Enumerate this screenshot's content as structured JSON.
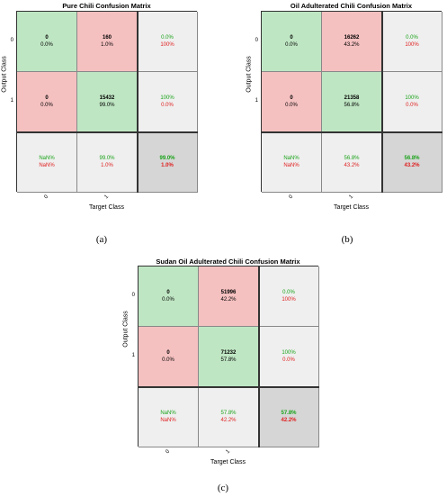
{
  "chart_data": [
    {
      "type": "heatmap",
      "title": "Pure Chili Confusion Matrix",
      "xlabel": "Target Class",
      "ylabel": "Output Class",
      "x_tick_labels": [
        "0",
        "1"
      ],
      "y_tick_labels": [
        "0",
        "1"
      ],
      "caption": "(a)",
      "cells": [
        [
          {
            "count": "0",
            "pct": "0.0%"
          },
          {
            "count": "160",
            "pct": "1.0%"
          }
        ],
        [
          {
            "count": "0",
            "pct": "0.0%"
          },
          {
            "count": "15432",
            "pct": "99.0%"
          }
        ]
      ],
      "row_summary": [
        [
          "0.0%",
          "100%"
        ],
        [
          "100%",
          "0.0%"
        ]
      ],
      "col_summary": [
        [
          "NaN%",
          "NaN%"
        ],
        [
          "99.0%",
          "1.0%"
        ]
      ],
      "overall": [
        "99.0%",
        "1.0%"
      ]
    },
    {
      "type": "heatmap",
      "title": "Oil Adulterated Chili Confusion Matrix",
      "xlabel": "Target Class",
      "ylabel": "Output Class",
      "x_tick_labels": [
        "0",
        "1"
      ],
      "y_tick_labels": [
        "0",
        "1"
      ],
      "caption": "(b)",
      "cells": [
        [
          {
            "count": "0",
            "pct": "0.0%"
          },
          {
            "count": "16262",
            "pct": "43.2%"
          }
        ],
        [
          {
            "count": "0",
            "pct": "0.0%"
          },
          {
            "count": "21358",
            "pct": "56.8%"
          }
        ]
      ],
      "row_summary": [
        [
          "0.0%",
          "100%"
        ],
        [
          "100%",
          "0.0%"
        ]
      ],
      "col_summary": [
        [
          "NaN%",
          "NaN%"
        ],
        [
          "56.8%",
          "43.2%"
        ]
      ],
      "overall": [
        "56.8%",
        "43.2%"
      ]
    },
    {
      "type": "heatmap",
      "title": "Sudan Oil Adulterated Chili Confusion Matrix",
      "xlabel": "Target Class",
      "ylabel": "Output Class",
      "x_tick_labels": [
        "0",
        "1"
      ],
      "y_tick_labels": [
        "0",
        "1"
      ],
      "caption": "(c)",
      "cells": [
        [
          {
            "count": "0",
            "pct": "0.0%"
          },
          {
            "count": "51996",
            "pct": "42.2%"
          }
        ],
        [
          {
            "count": "0",
            "pct": "0.0%"
          },
          {
            "count": "71232",
            "pct": "57.8%"
          }
        ]
      ],
      "row_summary": [
        [
          "0.0%",
          "100%"
        ],
        [
          "100%",
          "0.0%"
        ]
      ],
      "col_summary": [
        [
          "NaN%",
          "NaN%"
        ],
        [
          "57.8%",
          "42.2%"
        ]
      ],
      "overall": [
        "57.8%",
        "42.2%"
      ]
    }
  ]
}
